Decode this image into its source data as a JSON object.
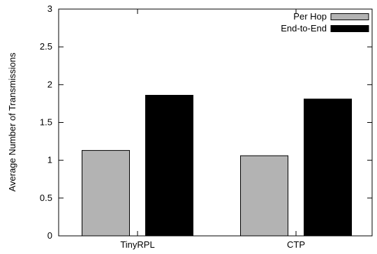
{
  "chart_data": {
    "type": "bar",
    "categories": [
      "TinyRPL",
      "CTP"
    ],
    "series": [
      {
        "name": "Per Hop",
        "values": [
          1.13,
          1.06
        ],
        "color": "#b3b3b3"
      },
      {
        "name": "End-to-End",
        "values": [
          1.86,
          1.81
        ],
        "color": "#000000"
      }
    ],
    "ylabel": "Average Number of Transmissions",
    "xlabel": "",
    "ylim": [
      0,
      3
    ],
    "yticks": [
      "0",
      "0.5",
      "1",
      "1.5",
      "2",
      "2.5",
      "3"
    ],
    "grid": false,
    "legend_position": "top-right"
  }
}
